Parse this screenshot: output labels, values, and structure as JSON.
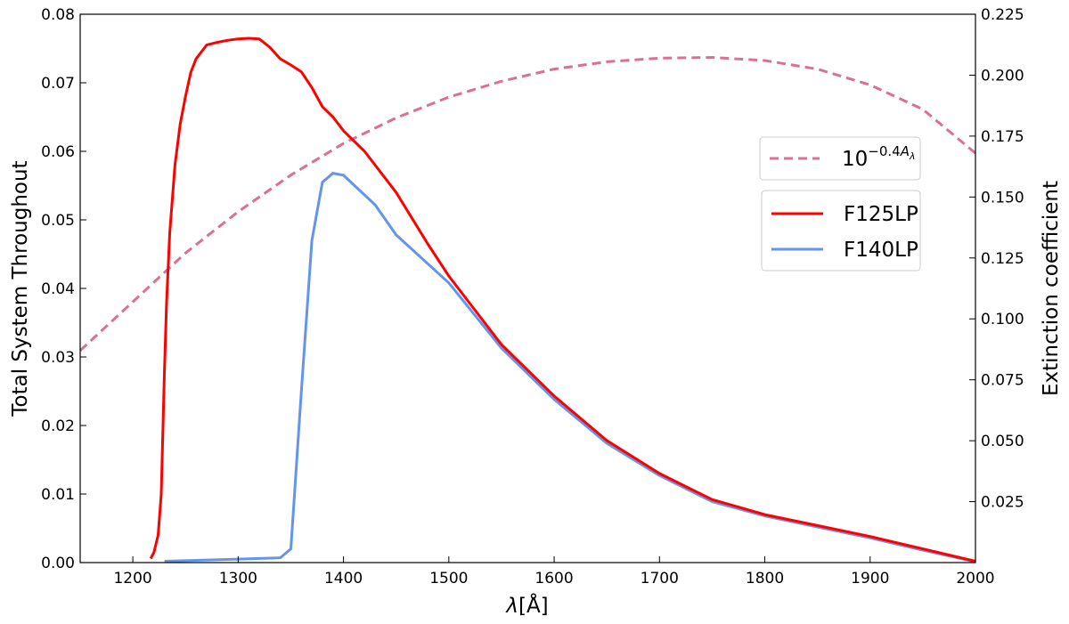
{
  "chart_data": {
    "type": "line",
    "xlabel_symbol": "λ",
    "xlabel_unit": "[Å]",
    "ylabel": "Total System Throughout",
    "y2label": "Extinction coefficient",
    "xlim": [
      1150,
      2000
    ],
    "ylim": [
      0,
      0.08
    ],
    "y2lim": [
      0,
      0.225
    ],
    "xticks": [
      1200,
      1300,
      1400,
      1500,
      1600,
      1700,
      1800,
      1900,
      2000
    ],
    "yticks": [
      0.0,
      0.01,
      0.02,
      0.03,
      0.04,
      0.05,
      0.06,
      0.07,
      0.08
    ],
    "ytick_labels": [
      "0.00",
      "0.01",
      "0.02",
      "0.03",
      "0.04",
      "0.05",
      "0.06",
      "0.07",
      "0.08"
    ],
    "y2ticks": [
      0.025,
      0.05,
      0.075,
      0.1,
      0.125,
      0.15,
      0.175,
      0.2,
      0.225
    ],
    "y2tick_labels": [
      "0.025",
      "0.050",
      "0.075",
      "0.100",
      "0.125",
      "0.150",
      "0.175",
      "0.200",
      "0.225"
    ],
    "legend_placement": "center-right",
    "grid": false,
    "series": [
      {
        "name": "F125LP",
        "color": "#ff0000",
        "axis": "left",
        "style": "solid",
        "x": [
          1217,
          1220,
          1224,
          1227,
          1230,
          1232,
          1235,
          1240,
          1245,
          1250,
          1255,
          1260,
          1270,
          1280,
          1290,
          1300,
          1310,
          1320,
          1330,
          1340,
          1350,
          1360,
          1370,
          1380,
          1390,
          1400,
          1420,
          1450,
          1480,
          1500,
          1550,
          1600,
          1650,
          1700,
          1750,
          1800,
          1850,
          1900,
          1950,
          2000
        ],
        "values": [
          0.0006,
          0.0015,
          0.004,
          0.01,
          0.028,
          0.038,
          0.048,
          0.058,
          0.064,
          0.068,
          0.0715,
          0.0735,
          0.0755,
          0.0759,
          0.0762,
          0.0764,
          0.0765,
          0.0764,
          0.0752,
          0.0735,
          0.0726,
          0.0716,
          0.0693,
          0.0665,
          0.065,
          0.063,
          0.06,
          0.054,
          0.0465,
          0.0418,
          0.0318,
          0.0243,
          0.0178,
          0.013,
          0.0092,
          0.007,
          0.0054,
          0.0038,
          0.002,
          0.0002
        ]
      },
      {
        "name": "F140LP",
        "color": "#6495ed",
        "axis": "left",
        "style": "solid",
        "x": [
          1230,
          1300,
          1340,
          1350,
          1360,
          1370,
          1380,
          1390,
          1400,
          1430,
          1450,
          1500,
          1550,
          1600,
          1650,
          1700,
          1750,
          1800,
          1850,
          1900,
          1950,
          2000
        ],
        "values": [
          0.0002,
          0.0005,
          0.0007,
          0.002,
          0.025,
          0.047,
          0.0555,
          0.0568,
          0.0565,
          0.0522,
          0.0478,
          0.0408,
          0.0313,
          0.0238,
          0.0174,
          0.0127,
          0.0089,
          0.0068,
          0.0052,
          0.0036,
          0.0018,
          0.0001
        ]
      },
      {
        "name": "10^{-0.4A_λ}",
        "legend_base": "10",
        "legend_exponent": "−0.4",
        "legend_exp_var": "A",
        "legend_exp_sub": "λ",
        "color": "#db7093",
        "axis": "right",
        "style": "dashed",
        "x": [
          1150,
          1200,
          1250,
          1300,
          1350,
          1400,
          1450,
          1500,
          1550,
          1600,
          1650,
          1700,
          1750,
          1800,
          1850,
          1900,
          1950,
          2000
        ],
        "values": [
          0.087,
          0.107,
          0.127,
          0.144,
          0.159,
          0.172,
          0.1825,
          0.191,
          0.1975,
          0.2025,
          0.2055,
          0.207,
          0.2073,
          0.206,
          0.2025,
          0.196,
          0.186,
          0.168
        ]
      }
    ]
  }
}
